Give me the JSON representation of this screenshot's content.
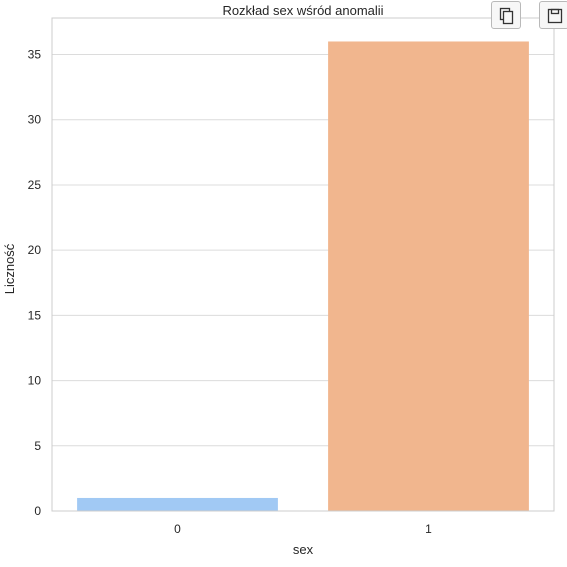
{
  "toolbar": {
    "copy_icon": "copy-icon",
    "save_icon": "save-icon"
  },
  "chart_data": {
    "type": "bar",
    "title": "Rozkład sex wśród anomalii",
    "xlabel": "sex",
    "ylabel": "Liczność",
    "categories": [
      "0",
      "1"
    ],
    "values": [
      1,
      36
    ],
    "ylim": [
      0,
      37.8
    ],
    "yticks": [
      0,
      5,
      10,
      15,
      20,
      25,
      30,
      35
    ],
    "grid": true,
    "colors": [
      "#a1c9f4",
      "#f1b68e"
    ],
    "grid_color": "#dcdcdc",
    "axis_color": "#cccccc"
  }
}
